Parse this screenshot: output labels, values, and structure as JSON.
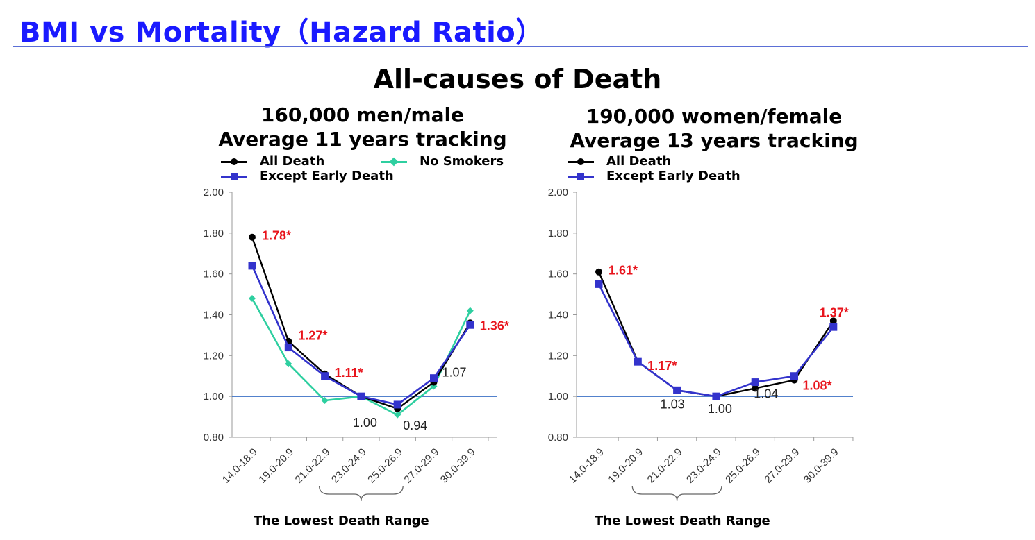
{
  "page": {
    "title": "BMI vs Mortality（Hazard Ratio）",
    "section_title": "All-causes of Death"
  },
  "panels": {
    "men": {
      "title_line1": "160,000 men/male",
      "title_line2": "Average 11 years tracking",
      "range_label": "The Lowest Death Range"
    },
    "women": {
      "title_line1": "190,000 women/female",
      "title_line2": "Average 13 years tracking",
      "range_label": "The Lowest Death Range"
    }
  },
  "colors": {
    "all_death": "#000000",
    "except_early": "#3333cc",
    "no_smokers": "#2ecfa0",
    "reference_line": "#3a6fc4",
    "annotation_red": "#e8141c",
    "annotation_black": "#222222",
    "axis": "#9a9a9a"
  },
  "chart_data": [
    {
      "type": "line",
      "categories": [
        "14.0-18.9",
        "19.0-20.9",
        "21.0-22.9",
        "23.0-24.9",
        "25.0-26.9",
        "27.0-29.9",
        "30.0-39.9"
      ],
      "ylim": [
        0.8,
        2.0
      ],
      "yticks": [
        "0.80",
        "1.00",
        "1.20",
        "1.40",
        "1.60",
        "1.80",
        "2.00"
      ],
      "reference_y": 1.0,
      "grid": false,
      "legend_position": "top",
      "series": [
        {
          "name": "All Death",
          "key": "all_death",
          "marker": "circle",
          "values": [
            1.78,
            1.27,
            1.11,
            1.0,
            0.94,
            1.07,
            1.36
          ]
        },
        {
          "name": "Except Early Death",
          "key": "except_early",
          "marker": "square",
          "values": [
            1.64,
            1.24,
            1.1,
            1.0,
            0.96,
            1.09,
            1.35
          ]
        },
        {
          "name": "No Smokers",
          "key": "no_smokers",
          "marker": "diamond",
          "values": [
            1.48,
            1.16,
            0.98,
            1.0,
            0.91,
            1.05,
            1.42
          ]
        }
      ],
      "annotations": [
        {
          "text": "1.78*",
          "category_index": 0,
          "y": 1.78,
          "color": "red"
        },
        {
          "text": "1.27*",
          "category_index": 1,
          "y": 1.27,
          "color": "red"
        },
        {
          "text": "1.11*",
          "category_index": 2,
          "y": 1.11,
          "color": "red"
        },
        {
          "text": "1.00",
          "category_index": 3,
          "y": 1.0,
          "color": "black"
        },
        {
          "text": "0.94",
          "category_index": 4,
          "y": 0.94,
          "color": "black"
        },
        {
          "text": "1.07",
          "category_index": 5,
          "y": 1.07,
          "color": "black"
        },
        {
          "text": "1.36*",
          "category_index": 6,
          "y": 1.36,
          "color": "red"
        }
      ],
      "lowest_range": [
        "21.0-22.9",
        "25.0-26.9"
      ]
    },
    {
      "type": "line",
      "categories": [
        "14.0-18.9",
        "19.0-20.9",
        "21.0-22.9",
        "23.0-24.9",
        "25.0-26.9",
        "27.0-29.9",
        "30.0-39.9"
      ],
      "ylim": [
        0.8,
        2.0
      ],
      "yticks": [
        "0.80",
        "1.00",
        "1.20",
        "1.40",
        "1.60",
        "1.80",
        "2.00"
      ],
      "reference_y": 1.0,
      "grid": false,
      "legend_position": "top",
      "series": [
        {
          "name": "All Death",
          "key": "all_death",
          "marker": "circle",
          "values": [
            1.61,
            1.17,
            1.03,
            1.0,
            1.04,
            1.08,
            1.37
          ]
        },
        {
          "name": "Except Early Death",
          "key": "except_early",
          "marker": "square",
          "values": [
            1.55,
            1.17,
            1.03,
            1.0,
            1.07,
            1.1,
            1.34
          ]
        }
      ],
      "annotations": [
        {
          "text": "1.61*",
          "category_index": 0,
          "y": 1.61,
          "color": "red"
        },
        {
          "text": "1.17*",
          "category_index": 1,
          "y": 1.17,
          "color": "red"
        },
        {
          "text": "1.03",
          "category_index": 2,
          "y": 1.03,
          "color": "black"
        },
        {
          "text": "1.00",
          "category_index": 3,
          "y": 1.0,
          "color": "black"
        },
        {
          "text": "1.04",
          "category_index": 4,
          "y": 1.04,
          "color": "black"
        },
        {
          "text": "1.08*",
          "category_index": 5,
          "y": 1.08,
          "color": "red"
        },
        {
          "text": "1.37*",
          "category_index": 6,
          "y": 1.37,
          "color": "red"
        }
      ],
      "lowest_range": [
        "19.0-20.9",
        "23.0-24.9"
      ]
    }
  ]
}
